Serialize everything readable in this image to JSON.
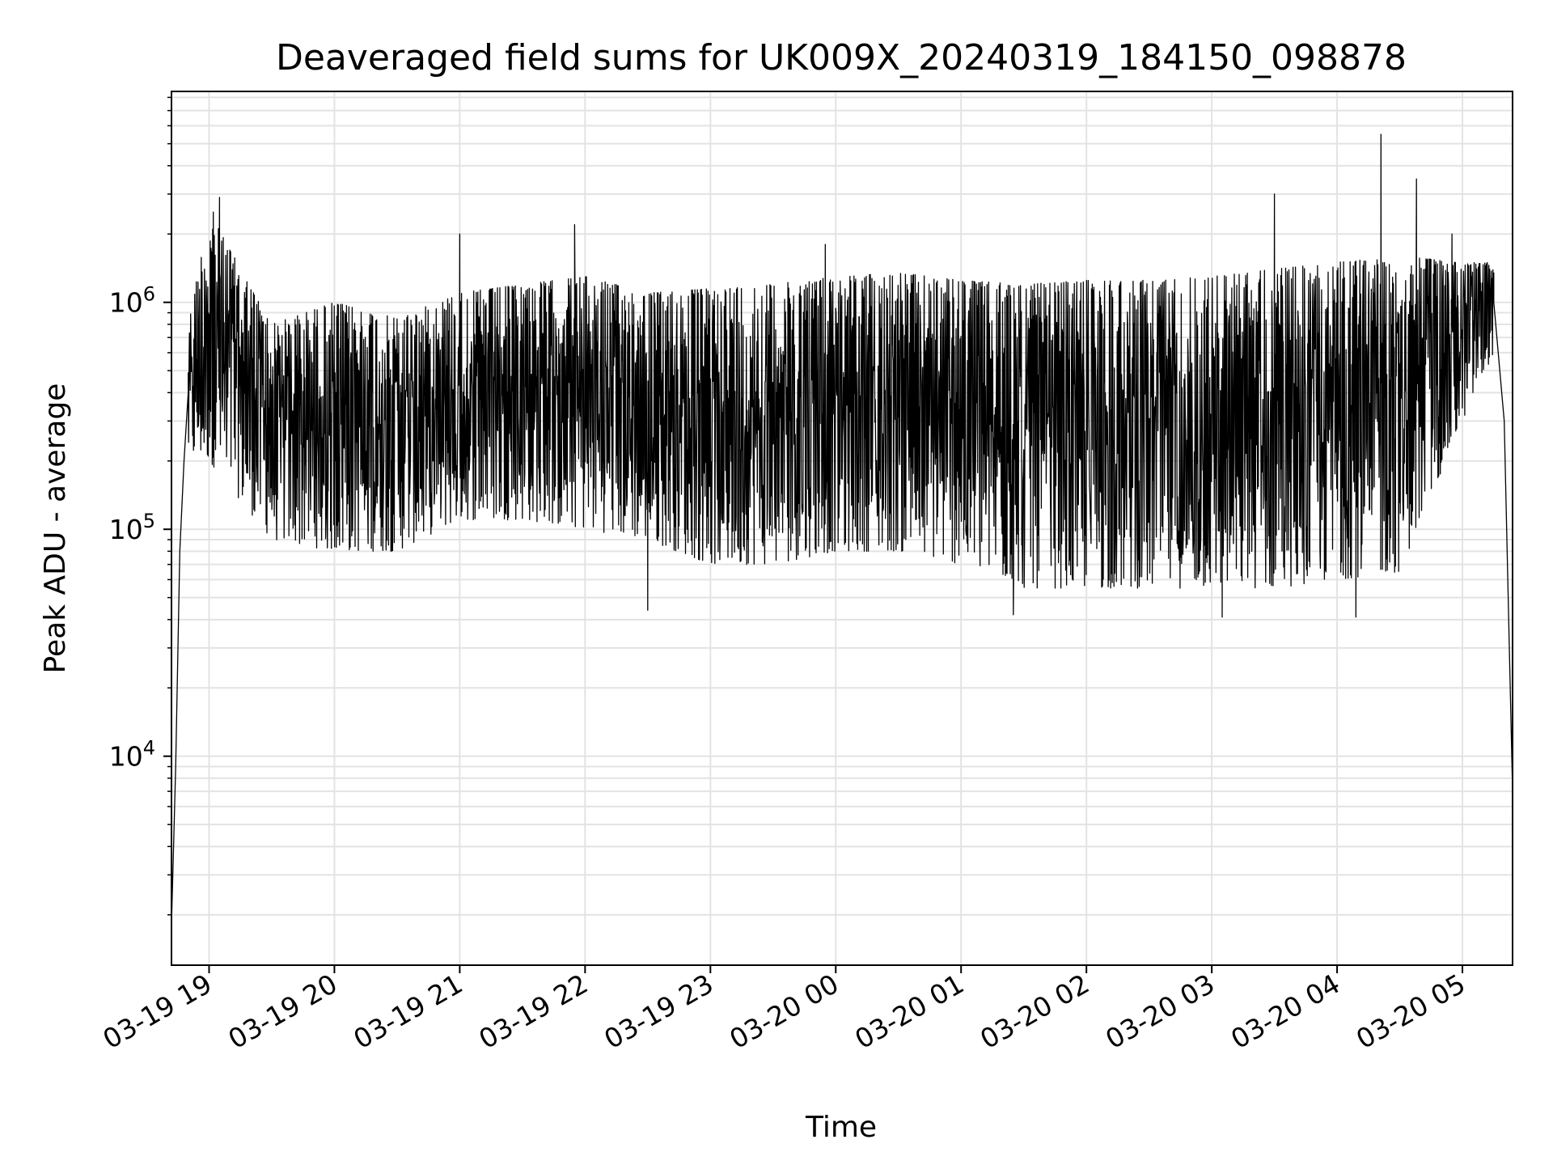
{
  "chart_data": {
    "type": "line",
    "title": "Deaveraged field sums for UK009X_20240319_184150_098878",
    "xlabel": "Time",
    "ylabel": "Peak ADU - average",
    "y_scale": "log",
    "ylim": [
      1200,
      8500000
    ],
    "xlim": [
      "2024-03-19 18:42",
      "2024-03-20 05:24"
    ],
    "grid": true,
    "line_color": "#000000",
    "grid_color": "#e3e3e3",
    "x_ticks": [
      {
        "value": "2024-03-19 19:00",
        "label": "03-19 19"
      },
      {
        "value": "2024-03-19 20:00",
        "label": "03-19 20"
      },
      {
        "value": "2024-03-19 21:00",
        "label": "03-19 21"
      },
      {
        "value": "2024-03-19 22:00",
        "label": "03-19 22"
      },
      {
        "value": "2024-03-19 23:00",
        "label": "03-19 23"
      },
      {
        "value": "2024-03-20 00:00",
        "label": "03-20 00"
      },
      {
        "value": "2024-03-20 01:00",
        "label": "03-20 01"
      },
      {
        "value": "2024-03-20 02:00",
        "label": "03-20 02"
      },
      {
        "value": "2024-03-20 03:00",
        "label": "03-20 03"
      },
      {
        "value": "2024-03-20 04:00",
        "label": "03-20 04"
      },
      {
        "value": "2024-03-20 05:00",
        "label": "03-20 05"
      }
    ],
    "y_ticks": [
      {
        "value": 10000,
        "base": "10",
        "exp": "4"
      },
      {
        "value": 100000,
        "base": "10",
        "exp": "5"
      },
      {
        "value": 1000000,
        "base": "10",
        "exp": "6"
      }
    ],
    "series": [
      {
        "points": [
          {
            "x": "2024-03-19 18:42",
            "y": 1800
          },
          {
            "x": "2024-03-19 18:44",
            "y": 9000
          },
          {
            "x": "2024-03-19 18:46",
            "y": 80000
          },
          {
            "x": "2024-03-19 18:48",
            "y": 200000
          },
          {
            "x": "2024-03-19 18:50",
            "y": 400000
          },
          {
            "x": "2024-03-19 18:55",
            "y": 800000
          },
          {
            "x": "2024-03-19 19:00",
            "y": 1500000
          },
          {
            "x": "2024-03-19 19:05",
            "y": 2900000
          },
          {
            "x": "2024-03-19 19:10",
            "y": 900000
          },
          {
            "x": "2024-03-19 19:20",
            "y": 500000
          },
          {
            "x": "2024-03-19 19:40",
            "y": 380000
          },
          {
            "x": "2024-03-19 20:00",
            "y": 350000
          },
          {
            "x": "2024-03-19 20:30",
            "y": 320000
          },
          {
            "x": "2024-03-19 21:00",
            "y": 420000
          },
          {
            "x": "2024-03-19 21:30",
            "y": 500000
          },
          {
            "x": "2024-03-19 22:00",
            "y": 600000
          },
          {
            "x": "2024-03-19 22:30",
            "y": 550000
          },
          {
            "x": "2024-03-19 23:00",
            "y": 500000
          },
          {
            "x": "2024-03-19 23:30",
            "y": 520000
          },
          {
            "x": "2024-03-20 00:00",
            "y": 550000
          },
          {
            "x": "2024-03-20 00:30",
            "y": 560000
          },
          {
            "x": "2024-03-20 01:00",
            "y": 520000
          },
          {
            "x": "2024-03-20 01:30",
            "y": 420000
          },
          {
            "x": "2024-03-20 02:00",
            "y": 380000
          },
          {
            "x": "2024-03-20 02:30",
            "y": 400000
          },
          {
            "x": "2024-03-20 03:00",
            "y": 420000
          },
          {
            "x": "2024-03-20 03:30",
            "y": 450000
          },
          {
            "x": "2024-03-20 04:00",
            "y": 550000
          },
          {
            "x": "2024-03-20 04:30",
            "y": 600000
          },
          {
            "x": "2024-03-20 05:00",
            "y": 800000
          },
          {
            "x": "2024-03-20 05:15",
            "y": 1000000
          },
          {
            "x": "2024-03-20 05:20",
            "y": 300000
          },
          {
            "x": "2024-03-20 05:24",
            "y": 7000
          }
        ],
        "envelope": [
          {
            "x": "2024-03-19 18:50",
            "low": 200000,
            "high": 800000
          },
          {
            "x": "2024-03-19 19:00",
            "low": 200000,
            "high": 2500000
          },
          {
            "x": "2024-03-19 19:30",
            "low": 90000,
            "high": 800000
          },
          {
            "x": "2024-03-19 20:00",
            "low": 80000,
            "high": 1000000
          },
          {
            "x": "2024-03-19 20:30",
            "low": 80000,
            "high": 850000
          },
          {
            "x": "2024-03-19 21:00",
            "low": 110000,
            "high": 1100000
          },
          {
            "x": "2024-03-19 21:30",
            "low": 110000,
            "high": 1200000
          },
          {
            "x": "2024-03-19 22:00",
            "low": 100000,
            "high": 1300000
          },
          {
            "x": "2024-03-19 22:30",
            "low": 90000,
            "high": 1100000
          },
          {
            "x": "2024-03-19 23:00",
            "low": 70000,
            "high": 1150000
          },
          {
            "x": "2024-03-19 23:30",
            "low": 70000,
            "high": 1200000
          },
          {
            "x": "2024-03-20 00:00",
            "low": 80000,
            "high": 1300000
          },
          {
            "x": "2024-03-20 00:30",
            "low": 80000,
            "high": 1350000
          },
          {
            "x": "2024-03-20 01:00",
            "low": 70000,
            "high": 1250000
          },
          {
            "x": "2024-03-20 01:30",
            "low": 55000,
            "high": 1200000
          },
          {
            "x": "2024-03-20 02:00",
            "low": 55000,
            "high": 1250000
          },
          {
            "x": "2024-03-20 02:30",
            "low": 55000,
            "high": 1250000
          },
          {
            "x": "2024-03-20 03:00",
            "low": 55000,
            "high": 1300000
          },
          {
            "x": "2024-03-20 03:30",
            "low": 55000,
            "high": 1400000
          },
          {
            "x": "2024-03-20 04:00",
            "low": 60000,
            "high": 1500000
          },
          {
            "x": "2024-03-20 04:30",
            "low": 65000,
            "high": 1600000
          },
          {
            "x": "2024-03-20 05:00",
            "low": 300000,
            "high": 1500000
          },
          {
            "x": "2024-03-20 05:15",
            "low": 600000,
            "high": 1500000
          }
        ],
        "spikes": [
          {
            "x": "2024-03-19 19:02",
            "y": 2500000
          },
          {
            "x": "2024-03-19 19:05",
            "y": 2900000
          },
          {
            "x": "2024-03-19 21:00",
            "y": 2000000
          },
          {
            "x": "2024-03-19 21:55",
            "y": 2200000
          },
          {
            "x": "2024-03-19 22:30",
            "y": 44000
          },
          {
            "x": "2024-03-19 23:55",
            "y": 1800000
          },
          {
            "x": "2024-03-20 03:30",
            "y": 3000000
          },
          {
            "x": "2024-03-20 04:21",
            "y": 5500000
          },
          {
            "x": "2024-03-20 04:38",
            "y": 3500000
          },
          {
            "x": "2024-03-20 04:55",
            "y": 2000000
          },
          {
            "x": "2024-03-20 01:25",
            "y": 42000
          },
          {
            "x": "2024-03-20 03:05",
            "y": 41000
          },
          {
            "x": "2024-03-20 04:09",
            "y": 41000
          }
        ]
      }
    ]
  }
}
